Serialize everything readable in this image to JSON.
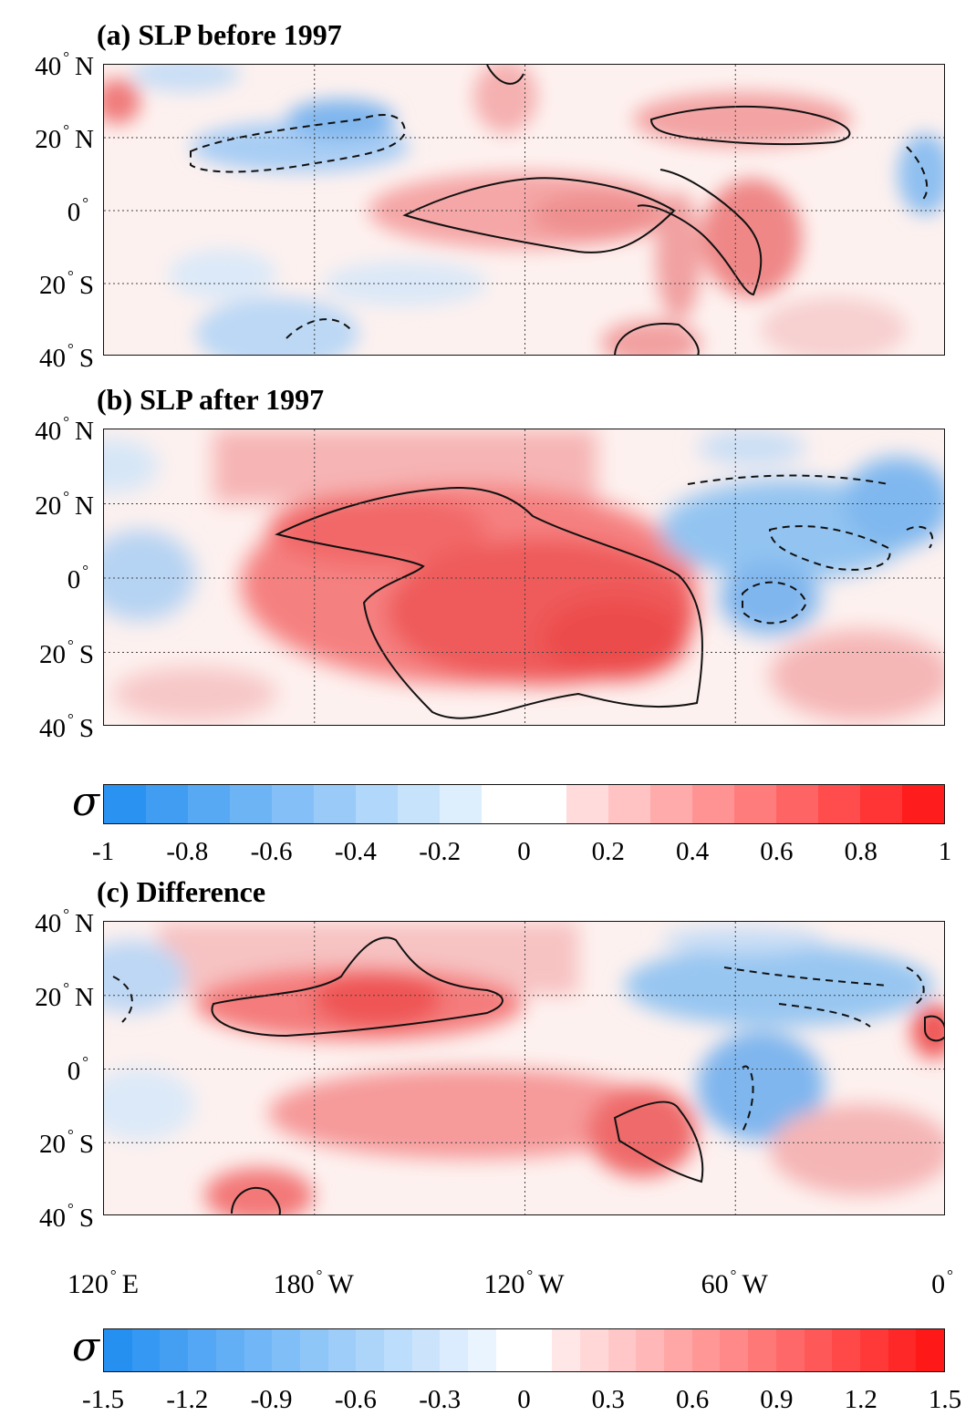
{
  "panels": [
    {
      "title": "(a) SLP before 1997"
    },
    {
      "title": "(b) SLP after 1997"
    },
    {
      "title": "(c) Difference"
    }
  ],
  "lat_labels": [
    {
      "value": "40",
      "hemi": "N"
    },
    {
      "value": "20",
      "hemi": "N"
    },
    {
      "value": "0",
      "hemi": ""
    },
    {
      "value": "20",
      "hemi": "S"
    },
    {
      "value": "40",
      "hemi": "S"
    }
  ],
  "lon_labels": [
    {
      "value": "120",
      "hemi": "E"
    },
    {
      "value": "180",
      "hemi": "W"
    },
    {
      "value": "120",
      "hemi": "W"
    },
    {
      "value": "60",
      "hemi": "W"
    },
    {
      "value": "0",
      "hemi": ""
    }
  ],
  "colorbar_top": {
    "symbol": "σ",
    "ticks": [
      "-1",
      "-0.8",
      "-0.6",
      "-0.4",
      "-0.2",
      "0",
      "0.2",
      "0.4",
      "0.6",
      "0.8",
      "1"
    ],
    "min": -1,
    "max": 1,
    "levels": 20
  },
  "colorbar_bottom": {
    "symbol": "σ",
    "ticks": [
      "-1.5",
      "-1.2",
      "-0.9",
      "-0.6",
      "-0.3",
      "0",
      "0.3",
      "0.6",
      "0.9",
      "1.2",
      "1.5"
    ],
    "min": -1.5,
    "max": 1.5,
    "levels": 30
  },
  "colors": {
    "negative_end": "#1f8cf0",
    "neutral": "#ffffff",
    "positive_end": "#ff1010",
    "contour": "#111111",
    "grid": "#444444"
  }
}
